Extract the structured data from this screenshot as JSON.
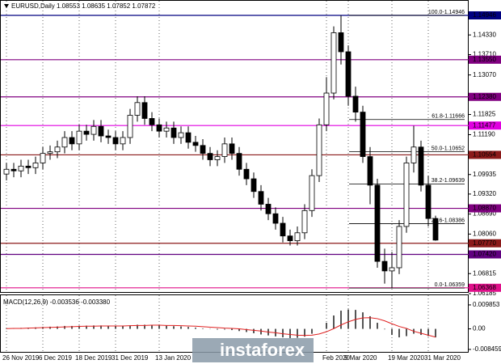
{
  "chart_data": [
    {
      "type": "candlestick",
      "title": "EURUSD,Daily  1.08553 1.08635 1.07852 1.07872",
      "watermark": "instaforex",
      "categories": [
        "26 Nov 2019",
        null,
        null,
        null,
        null,
        "6 Dec 2019",
        null,
        null,
        null,
        null,
        "18 Dec 2019",
        null,
        null,
        null,
        null,
        "31 Dec 2019",
        null,
        null,
        null,
        null,
        null,
        "13 Jan 2020",
        null,
        null,
        null,
        null,
        null,
        null,
        null,
        null,
        null,
        null,
        null,
        null,
        null,
        null,
        null,
        null,
        null,
        null,
        null,
        null,
        null,
        null,
        "Feb 2020",
        null,
        null,
        "9 Mar 2020",
        null,
        null,
        null,
        null,
        null,
        "19 Mar 2020",
        null,
        null,
        null,
        null,
        "31 Mar 2020",
        null
      ],
      "open": [
        1.0995,
        1.101,
        1.1005,
        1.102,
        1.1015,
        1.103,
        1.106,
        1.1065,
        1.108,
        1.111,
        1.109,
        1.113,
        1.112,
        1.1145,
        1.1115,
        1.111,
        1.109,
        1.111,
        1.118,
        1.122,
        1.117,
        1.115,
        1.113,
        1.114,
        1.111,
        1.1125,
        1.1095,
        1.1085,
        1.106,
        1.104,
        1.105,
        1.109,
        1.106,
        1.101,
        1.098,
        1.094,
        1.09,
        1.087,
        1.084,
        1.08,
        1.0785,
        1.081,
        1.088,
        1.099,
        1.115,
        1.125,
        1.144,
        1.138,
        1.124,
        1.119,
        1.105,
        1.096,
        1.072,
        1.069,
        1.07,
        1.083,
        1.103,
        1.108,
        1.096,
        1.0855
      ],
      "high": [
        1.103,
        1.103,
        1.104,
        1.104,
        1.105,
        1.108,
        1.1085,
        1.11,
        1.113,
        1.113,
        1.115,
        1.115,
        1.1165,
        1.1165,
        1.1135,
        1.113,
        1.113,
        1.12,
        1.124,
        1.124,
        1.119,
        1.117,
        1.116,
        1.116,
        1.1145,
        1.1145,
        1.1115,
        1.1105,
        1.108,
        1.107,
        1.111,
        1.111,
        1.108,
        1.103,
        1.1,
        1.096,
        1.092,
        1.089,
        1.086,
        1.082,
        1.083,
        1.09,
        1.101,
        1.117,
        1.13,
        1.146,
        1.14946,
        1.14,
        1.127,
        1.121,
        1.108,
        1.098,
        1.076,
        1.075,
        1.085,
        1.105,
        1.1147,
        1.11,
        1.099,
        1.0864
      ],
      "low": [
        1.0975,
        1.0985,
        1.0985,
        1.0995,
        1.0995,
        1.101,
        1.104,
        1.1045,
        1.106,
        1.107,
        1.107,
        1.11,
        1.11,
        1.1095,
        1.109,
        1.107,
        1.107,
        1.109,
        1.116,
        1.115,
        1.113,
        1.111,
        1.111,
        1.109,
        1.109,
        1.1075,
        1.1065,
        1.104,
        1.102,
        1.102,
        1.103,
        1.104,
        1.099,
        1.096,
        1.092,
        1.088,
        1.085,
        1.082,
        1.078,
        1.077,
        1.077,
        1.079,
        1.086,
        1.097,
        1.113,
        1.123,
        1.134,
        1.121,
        1.116,
        1.103,
        1.09,
        1.07,
        1.065,
        1.06359,
        1.068,
        1.081,
        1.1,
        1.094,
        1.083,
        1.0785
      ],
      "close": [
        1.101,
        1.1005,
        1.102,
        1.1015,
        1.103,
        1.106,
        1.1065,
        1.108,
        1.111,
        1.109,
        1.113,
        1.112,
        1.1145,
        1.1115,
        1.111,
        1.109,
        1.111,
        1.118,
        1.122,
        1.117,
        1.115,
        1.113,
        1.114,
        1.111,
        1.1125,
        1.1095,
        1.1085,
        1.106,
        1.104,
        1.105,
        1.109,
        1.106,
        1.101,
        1.098,
        1.094,
        1.09,
        1.087,
        1.084,
        1.08,
        1.0785,
        1.081,
        1.088,
        1.099,
        1.115,
        1.125,
        1.144,
        1.138,
        1.124,
        1.119,
        1.105,
        1.096,
        1.072,
        1.069,
        1.07,
        1.083,
        1.103,
        1.108,
        1.096,
        1.0855,
        1.0787
      ],
      "ylim": [
        1.0621,
        1.1543
      ],
      "yticks": [
        {
          "value": 1.1433,
          "label": "1.14330"
        },
        {
          "value": 1.1371,
          "label": "1.13710"
        },
        {
          "value": 1.1307,
          "label": "1.13070"
        },
        1.11825,
        {
          "value": 1.1119,
          "label": "1.11190"
        },
        1.09935,
        {
          "value": 1.0932,
          "label": "1.09320"
        },
        {
          "value": 1.0869,
          "label": "1.08690"
        },
        {
          "value": 1.0806,
          "label": "1.08060"
        },
        1.06815,
        1.06185
      ],
      "levels": [
        {
          "value": 1.14946,
          "color": "#000080"
        },
        {
          "value": 1.1355,
          "label": "1.13550",
          "color": "#800080"
        },
        {
          "value": 1.1238,
          "label": "1.12380",
          "color": "#800080"
        },
        {
          "value": 1.11477,
          "color": "#e000e0"
        },
        {
          "value": 1.10554,
          "color": "#8b1a1a"
        },
        {
          "value": 1.0887,
          "label": "1.08870",
          "color": "#800080"
        },
        {
          "value": 1.0777,
          "label": "1.07770",
          "color": "#8b1a1a"
        },
        {
          "value": 1.0742,
          "label": "1.07420",
          "color": "#600080"
        },
        {
          "value": 1.06368,
          "color": "#e0108a"
        }
      ],
      "fibo": [
        {
          "value": 1.14946,
          "label": "100.0-1.14946"
        },
        {
          "value": 1.11666,
          "label": "61.8-1.11666"
        },
        {
          "value": 1.10652,
          "label": "50.0-1.10652"
        },
        {
          "value": 1.09639,
          "label": "38.2-1.09639"
        },
        {
          "value": 1.08386,
          "label": "23.6-1.08386"
        },
        {
          "value": 1.06359,
          "label": "0.0-1.06359"
        }
      ]
    },
    {
      "type": "macd",
      "title": "MACD(12,26,9) -0.003536 -0.003380",
      "values": [
        0.0002,
        0.0003,
        0.0004,
        0.0005,
        0.0006,
        0.0008,
        0.0009,
        0.001,
        0.0012,
        0.0012,
        0.0013,
        0.0013,
        0.0014,
        0.0014,
        0.0013,
        0.0012,
        0.0012,
        0.0014,
        0.0017,
        0.0017,
        0.0016,
        0.0014,
        0.0013,
        0.0011,
        0.001,
        0.0008,
        0.0005,
        0.0002,
        -0.0001,
        -0.0003,
        -0.0003,
        -0.0005,
        -0.0009,
        -0.0013,
        -0.0018,
        -0.0023,
        -0.0027,
        -0.0031,
        -0.0035,
        -0.0038,
        -0.0037,
        -0.0032,
        -0.002,
        0.0,
        0.0025,
        0.0055,
        0.0075,
        0.008,
        0.0078,
        0.0068,
        0.0052,
        0.0025,
        -0.0002,
        -0.0025,
        -0.0035,
        -0.003,
        -0.002,
        -0.0025,
        -0.003,
        -0.0035
      ],
      "signal": [
        0.0001,
        0.0002,
        0.0002,
        0.0003,
        0.0004,
        0.0005,
        0.0006,
        0.0007,
        0.0008,
        0.0009,
        0.001,
        0.0011,
        0.0011,
        0.0012,
        0.0012,
        0.0012,
        0.0012,
        0.0013,
        0.0014,
        0.0014,
        0.0015,
        0.0015,
        0.0014,
        0.0014,
        0.0013,
        0.0012,
        0.0011,
        0.0009,
        0.0007,
        0.0005,
        0.0003,
        0.0002,
        0.0,
        -0.0003,
        -0.0006,
        -0.0009,
        -0.0013,
        -0.0016,
        -0.002,
        -0.0023,
        -0.0026,
        -0.0027,
        -0.0026,
        -0.0021,
        -0.0012,
        0.0001,
        0.0016,
        0.0029,
        0.0039,
        0.0045,
        0.0046,
        0.0042,
        0.0033,
        0.0021,
        0.001,
        0.0002,
        -0.001,
        -0.0018,
        -0.0026,
        -0.0034
      ],
      "signal_color": "#e02020",
      "ylim": [
        -0.0098,
        0.0135
      ],
      "yticks": [
        0.009853,
        {
          "value": 0,
          "label": "0.00"
        },
        -0.008459
      ]
    }
  ]
}
